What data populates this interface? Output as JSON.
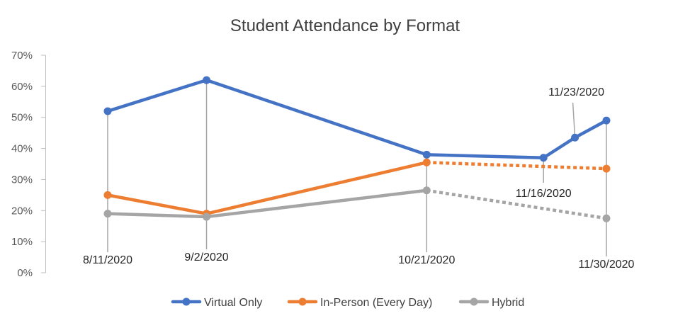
{
  "chart_data": {
    "type": "line",
    "title": "Student Attendance by Format",
    "xlabel": "",
    "ylabel": "",
    "ylim": [
      0,
      0.7
    ],
    "yticks": [
      "0%",
      "10%",
      "20%",
      "30%",
      "40%",
      "50%",
      "60%",
      "70%"
    ],
    "grid": false,
    "legend_position": "bottom",
    "dates": [
      "8/11/2020",
      "9/2/2020",
      "10/21/2020",
      "11/16/2020",
      "11/23/2020",
      "11/30/2020"
    ],
    "series": [
      {
        "name": "Virtual Only",
        "color": "#4472C4",
        "values": [
          0.52,
          0.62,
          0.38,
          0.37,
          0.435,
          0.49
        ],
        "dashed_from_index": null
      },
      {
        "name": "In-Person (Every Day)",
        "color": "#ED7D31",
        "values": [
          0.25,
          0.19,
          0.355,
          null,
          null,
          0.335
        ],
        "dashed_from_index": 2
      },
      {
        "name": "Hybrid",
        "color": "#A5A5A5",
        "values": [
          0.19,
          0.18,
          0.265,
          null,
          null,
          0.175
        ],
        "dashed_from_index": 2
      }
    ]
  }
}
